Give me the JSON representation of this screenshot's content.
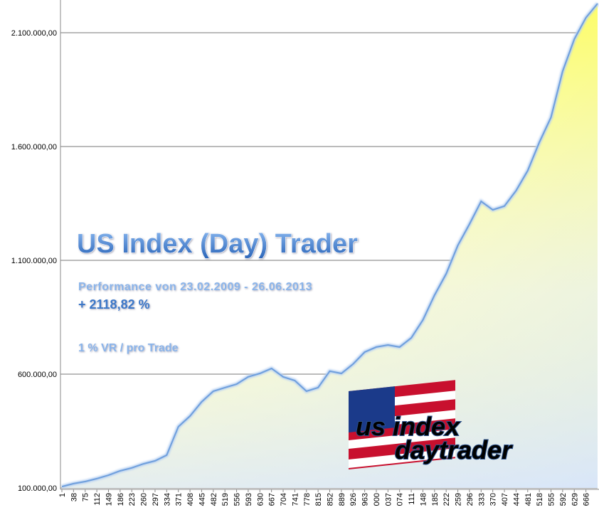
{
  "chart_data": {
    "type": "area",
    "title": "US Index (Day) Trader",
    "subtitle": "Performance  von  23.02.2009 - 26.06.2013",
    "annotations": [
      "+ 2118,82 %",
      "1 % VR / pro Trade"
    ],
    "logo": [
      "us index",
      "daytrader"
    ],
    "categories": [
      "1",
      "38",
      "75",
      "112",
      "149",
      "186",
      "223",
      "260",
      "297",
      "334",
      "371",
      "408",
      "445",
      "482",
      "519",
      "556",
      "593",
      "630",
      "667",
      "704",
      "741",
      "778",
      "815",
      "852",
      "889",
      "926",
      "963",
      "000",
      "037",
      "074",
      "111",
      "148",
      "185",
      "222",
      "259",
      "296",
      "333",
      "370",
      "407",
      "444",
      "481",
      "518",
      "555",
      "592",
      "629",
      "666",
      null
    ],
    "values": [
      106000,
      119000,
      128000,
      141000,
      156000,
      175000,
      188000,
      206000,
      219000,
      244000,
      369000,
      416000,
      478000,
      525000,
      541000,
      556000,
      588000,
      603000,
      625000,
      588000,
      572000,
      525000,
      541000,
      613000,
      603000,
      644000,
      697000,
      719000,
      728000,
      719000,
      759000,
      838000,
      947000,
      1041000,
      1166000,
      1259000,
      1359000,
      1322000,
      1338000,
      1406000,
      1494000,
      1619000,
      1728000,
      1931000,
      2072000,
      2166000,
      2228000
    ],
    "color": "#6f9fdc",
    "ylim": [
      100000,
      2243750
    ],
    "yticks": [
      {
        "value": 100000,
        "label": "100.000,00"
      },
      {
        "value": 600000,
        "label": "600.000,00"
      },
      {
        "value": 1100000,
        "label": "1.100.000,00"
      },
      {
        "value": 1600000,
        "label": "1.600.000,00"
      },
      {
        "value": 2100000,
        "label": "2.100.000,00"
      }
    ],
    "grid": true
  }
}
